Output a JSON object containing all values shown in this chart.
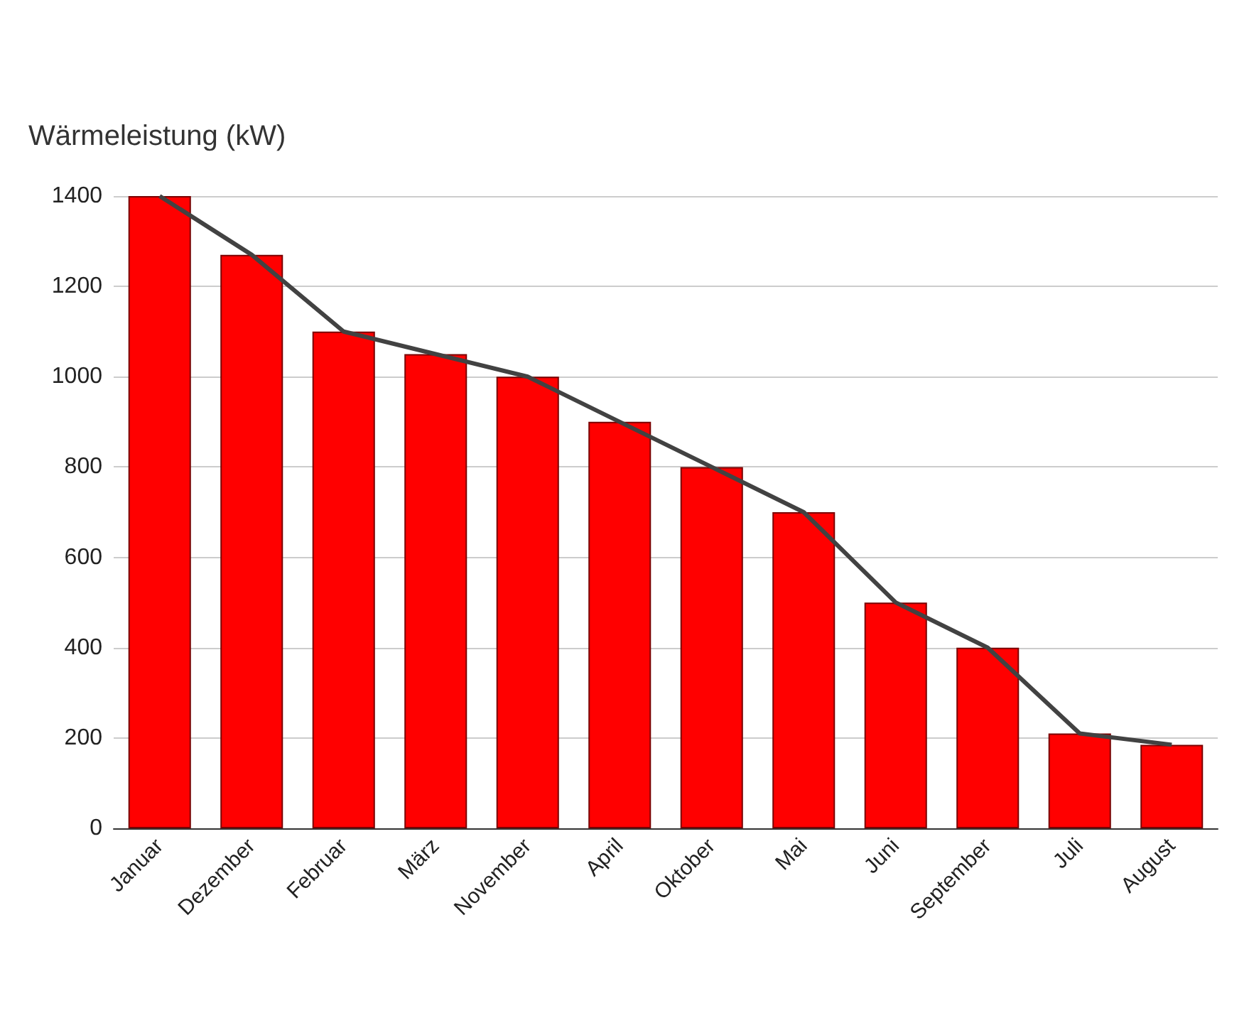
{
  "chart_data": {
    "type": "bar",
    "ylabel": "Wärmeleistung (kW)",
    "categories": [
      "Januar",
      "Dezember",
      "Februar",
      "März",
      "November",
      "April",
      "Oktober",
      "Mai",
      "Juni",
      "September",
      "Juli",
      "August"
    ],
    "series": [
      {
        "color": "#ff0000",
        "values": [
          1400,
          1270,
          1100,
          1050,
          1000,
          900,
          800,
          700,
          500,
          400,
          210,
          185
        ]
      },
      {
        "type": "line",
        "color": "#424242",
        "marker": "none",
        "values": [
          1400,
          1270,
          1100,
          1050,
          1000,
          900,
          800,
          700,
          500,
          400,
          210,
          185
        ]
      }
    ],
    "ylim": [
      0,
      1400
    ],
    "yticks": [
      0,
      200,
      400,
      600,
      800,
      1000,
      1200,
      1400
    ],
    "grid": "y"
  }
}
